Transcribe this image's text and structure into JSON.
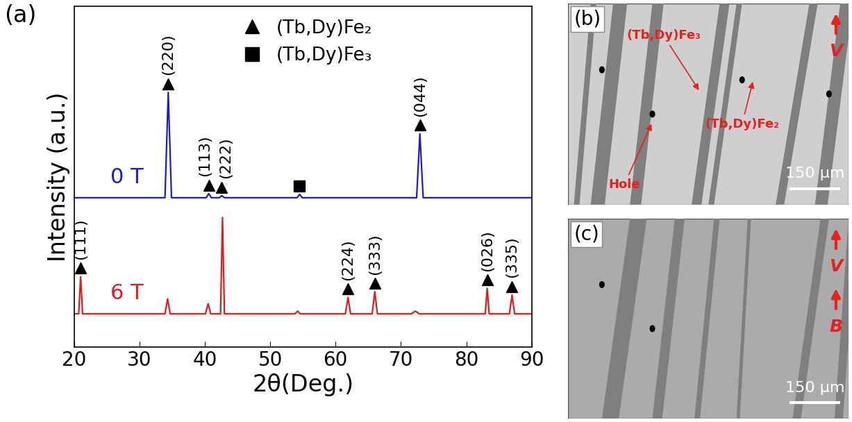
{
  "chart_data": {
    "type": "line",
    "panel": "(a)",
    "xlabel": "2θ(Deg.)",
    "ylabel": "Intensity (a.u.)",
    "xlim": [
      20,
      90
    ],
    "xticks": [
      20,
      30,
      40,
      50,
      60,
      70,
      80,
      90
    ],
    "ylim": [
      0,
      100
    ],
    "yticks": [],
    "tick_labels": "x",
    "legend": "upper center",
    "phases": [
      {
        "name": "(Tb,Dy)Fe₂",
        "marker": "triangle",
        "color": "#000000"
      },
      {
        "name": "(Tb,Dy)Fe₃",
        "marker": "square",
        "color": "#000000"
      }
    ],
    "series": [
      {
        "name": "0 T",
        "color": "#1a1ad9",
        "line_style": "solid",
        "x": [
          20,
          33.9,
          34.4,
          34.9,
          40.2,
          40.6,
          41.0,
          42.2,
          42.6,
          43.0,
          54.1,
          54.5,
          54.9,
          72.4,
          72.9,
          73.4,
          90
        ],
        "values": [
          43.8,
          43.8,
          74.7,
          43.8,
          43.8,
          45.0,
          43.8,
          43.8,
          44.4,
          43.8,
          43.8,
          44.8,
          43.8,
          43.8,
          62.6,
          43.8,
          43.8
        ],
        "peaks": [
          {
            "x": 34.4,
            "marker": "triangle",
            "text": "(220)"
          },
          {
            "x": 40.6,
            "marker": "triangle",
            "text": "(113)"
          },
          {
            "x": 42.6,
            "marker": "triangle",
            "text": "(222)"
          },
          {
            "x": 54.5,
            "marker": "square"
          },
          {
            "x": 72.9,
            "marker": "triangle",
            "text": "(044)"
          }
        ]
      },
      {
        "name": "6 T",
        "color": "#e41a1c",
        "line_style": "solid",
        "x": [
          20,
          20.7,
          21.0,
          21.3,
          33.9,
          34.3,
          34.7,
          40.1,
          40.5,
          40.9,
          42.4,
          42.7,
          43.0,
          53.8,
          54.2,
          54.6,
          61.5,
          61.9,
          62.3,
          65.6,
          66.0,
          66.4,
          71.6,
          72.2,
          72.8,
          82.9,
          83.2,
          83.5,
          86.6,
          87.0,
          87.4,
          90
        ],
        "values": [
          9.7,
          9.7,
          20.6,
          9.7,
          9.7,
          14.1,
          9.7,
          9.7,
          12.7,
          9.7,
          9.7,
          38.0,
          9.7,
          9.7,
          10.5,
          9.7,
          9.7,
          14.5,
          9.7,
          9.7,
          16.2,
          9.7,
          9.7,
          10.5,
          9.7,
          9.7,
          17.2,
          9.7,
          9.7,
          15.2,
          9.7,
          9.7
        ],
        "peaks": [
          {
            "x": 21.0,
            "marker": "triangle",
            "text": "(111)"
          },
          {
            "x": 61.9,
            "marker": "triangle",
            "text": "(224)"
          },
          {
            "x": 66.0,
            "marker": "triangle",
            "text": "(333)"
          },
          {
            "x": 83.2,
            "marker": "triangle",
            "text": "(026)"
          },
          {
            "x": 87.0,
            "marker": "triangle",
            "text": "(335)"
          }
        ]
      }
    ]
  },
  "micrographs": [
    {
      "panel": "(b)",
      "texts": [
        "(Tb,Dy)Fe₃",
        "(Tb,Dy)Fe₂",
        "Hole"
      ],
      "arrows": [
        "V"
      ],
      "scale_bar": "150 μm"
    },
    {
      "panel": "(c)",
      "texts": [],
      "arrows": [
        "V",
        "B"
      ],
      "scale_bar": "150 μm"
    }
  ]
}
